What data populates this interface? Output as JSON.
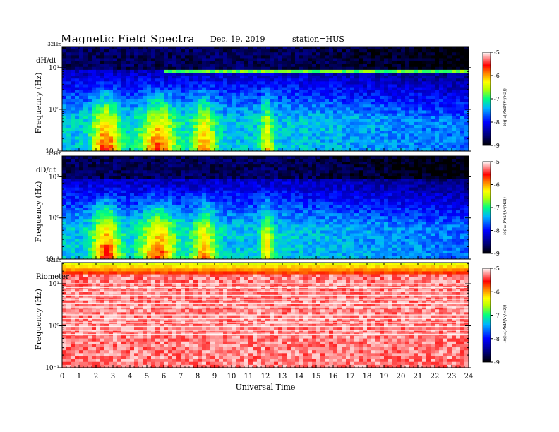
{
  "header": {
    "title": "Magnetic  Field  Spectra",
    "date": "Dec. 19, 2019",
    "station": "station=HUS"
  },
  "chart_data": [
    {
      "type": "heatmap",
      "panel_label": "dH/dt",
      "ylabel": "Frequency (Hz)",
      "top_label": "32Hz",
      "y_ticks": [
        "10⁻¹",
        "10⁰",
        "10¹"
      ],
      "y_scale": "log",
      "ylim": [
        0.1,
        32
      ],
      "xlim": [
        0,
        24
      ],
      "colorbar": {
        "label": "log₁₀(PSD(V²/Hz))",
        "ticks": [
          "-5",
          "-6",
          "-7",
          "-8",
          "-9"
        ],
        "range": [
          -9,
          -5
        ]
      }
    },
    {
      "type": "heatmap",
      "panel_label": "dD/dt",
      "ylabel": "Frequency (Hz)",
      "top_label": "32Hz",
      "y_ticks": [
        "10⁻¹",
        "10⁰",
        "10¹"
      ],
      "y_scale": "log",
      "ylim": [
        0.1,
        32
      ],
      "xlim": [
        0,
        24
      ],
      "colorbar": {
        "label": "log₁₀(PSD(V²/Hz))",
        "ticks": [
          "-5",
          "-6",
          "-7",
          "-8",
          "-9"
        ],
        "range": [
          -9,
          -5
        ]
      }
    },
    {
      "type": "heatmap",
      "panel_label": "Riometer",
      "ylabel": "Frequency (Hz)",
      "top_label": "32Hz",
      "y_ticks": [
        "10⁻¹",
        "10⁰",
        "10¹"
      ],
      "y_scale": "log",
      "ylim": [
        0.1,
        32
      ],
      "xlim": [
        0,
        24
      ],
      "colorbar": {
        "label": "log₁₀(PSD(V²/Hz))",
        "ticks": [
          "-5",
          "-6",
          "-7",
          "-8",
          "-9"
        ],
        "range": [
          -9,
          -5
        ]
      }
    }
  ],
  "x_axis": {
    "label": "Universal Time",
    "ticks": [
      "0",
      "1",
      "2",
      "3",
      "4",
      "5",
      "6",
      "7",
      "8",
      "9",
      "10",
      "11",
      "12",
      "13",
      "14",
      "15",
      "16",
      "17",
      "18",
      "19",
      "20",
      "21",
      "22",
      "23",
      "24"
    ]
  }
}
